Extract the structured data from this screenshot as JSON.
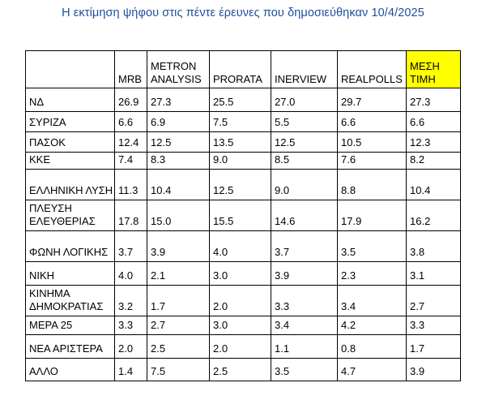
{
  "title": "Η εκτίμηση ψήφου στις πέντε έρευνες που δημοσιεύθηκαν 10/4/2025",
  "columns": [
    "",
    "MRB",
    "METRON ANALYSIS",
    "PRORATA",
    "INERVIEW",
    "REALPOLLS",
    "ΜΕΣΗ ΤΙΜΗ"
  ],
  "colors": {
    "title": "#1f4e9a",
    "highlight": "#ffff00"
  },
  "rows": [
    {
      "party": "ΝΔ",
      "mrb": "26.9",
      "metron": "27.3",
      "prorata": "25.5",
      "interview": "27.0",
      "realpolls": "29.7",
      "avg": "27.3"
    },
    {
      "party": "ΣΥΡΙΖΑ",
      "mrb": "6.6",
      "metron": "6.9",
      "prorata": "7.5",
      "interview": "5.5",
      "realpolls": "6.6",
      "avg": "6.6"
    },
    {
      "party": "ΠΑΣΟΚ",
      "mrb": "12.4",
      "metron": "12.5",
      "prorata": "13.5",
      "interview": "12.5",
      "realpolls": "10.5",
      "avg": "12.3"
    },
    {
      "party": "ΚΚΕ",
      "mrb": "7.4",
      "metron": "8.3",
      "prorata": "9.0",
      "interview": "8.5",
      "realpolls": "7.6",
      "avg": "8.2"
    },
    {
      "party": "ΕΛΛΗΝΙΚΗ ΛΥΣΗ",
      "mrb": "11.3",
      "metron": "10.4",
      "prorata": "12.5",
      "interview": "9.0",
      "realpolls": "8.8",
      "avg": "10.4"
    },
    {
      "party": "ΠΛΕΥΣΗ ΕΛΕΥΘΕΡΙΑΣ",
      "mrb": "17.8",
      "metron": "15.0",
      "prorata": "15.5",
      "interview": "14.6",
      "realpolls": "17.9",
      "avg": "16.2"
    },
    {
      "party": "ΦΩΝΗ ΛΟΓΙΚΗΣ",
      "mrb": "3.7",
      "metron": "3.9",
      "prorata": "4.0",
      "interview": "3.7",
      "realpolls": "3.5",
      "avg": "3.8"
    },
    {
      "party": "ΝΙΚΗ",
      "mrb": "4.0",
      "metron": "2.1",
      "prorata": "3.0",
      "interview": "3.9",
      "realpolls": "2.3",
      "avg": "3.1"
    },
    {
      "party": "ΚΙΝΗΜΑ ΔΗΜΟΚΡΑΤΙΑΣ",
      "mrb": "3.2",
      "metron": "1.7",
      "prorata": "2.0",
      "interview": "3.3",
      "realpolls": "3.4",
      "avg": "2.7"
    },
    {
      "party": "ΜΕΡΑ 25",
      "mrb": "3.3",
      "metron": "2.7",
      "prorata": "3.0",
      "interview": "3.4",
      "realpolls": "4.2",
      "avg": "3.3"
    },
    {
      "party": "ΝΕΑ ΑΡΙΣΤΕΡΑ",
      "mrb": "2.0",
      "metron": "2.5",
      "prorata": "2.0",
      "interview": "1.1",
      "realpolls": "0.8",
      "avg": "1.7"
    },
    {
      "party": "ΑΛΛΟ",
      "mrb": "1.4",
      "metron": "7.5",
      "prorata": "2.5",
      "interview": "3.5",
      "realpolls": "4.7",
      "avg": "3.9"
    }
  ]
}
